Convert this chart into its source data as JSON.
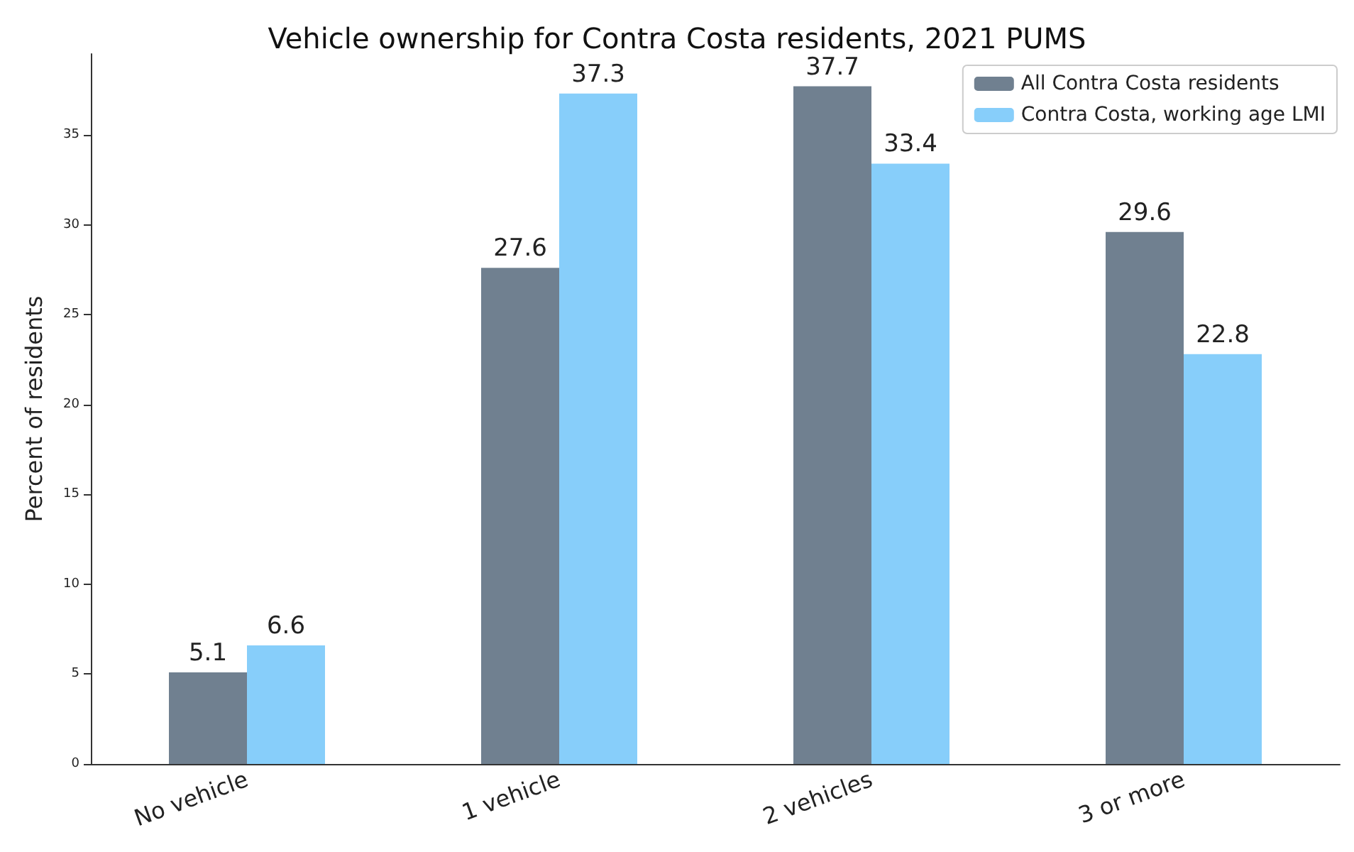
{
  "chart_data": {
    "type": "bar",
    "title": "Vehicle ownership for Contra Costa residents, 2021 PUMS",
    "ylabel": "Percent of residents",
    "categories": [
      "No vehicle",
      "1 vehicle",
      "2 vehicles",
      "3 or more"
    ],
    "series": [
      {
        "name": "All Contra Costa residents",
        "color": "#708090",
        "values": [
          5.1,
          27.6,
          37.7,
          29.6
        ]
      },
      {
        "name": "Contra Costa, working age LMI",
        "color": "#87cefa",
        "values": [
          6.6,
          37.3,
          33.4,
          22.8
        ]
      }
    ],
    "ylim": [
      0,
      39.5
    ],
    "yticks": [
      0,
      5,
      10,
      15,
      20,
      25,
      30,
      35
    ],
    "data_labels": true,
    "legend": "top right",
    "grid": false
  }
}
